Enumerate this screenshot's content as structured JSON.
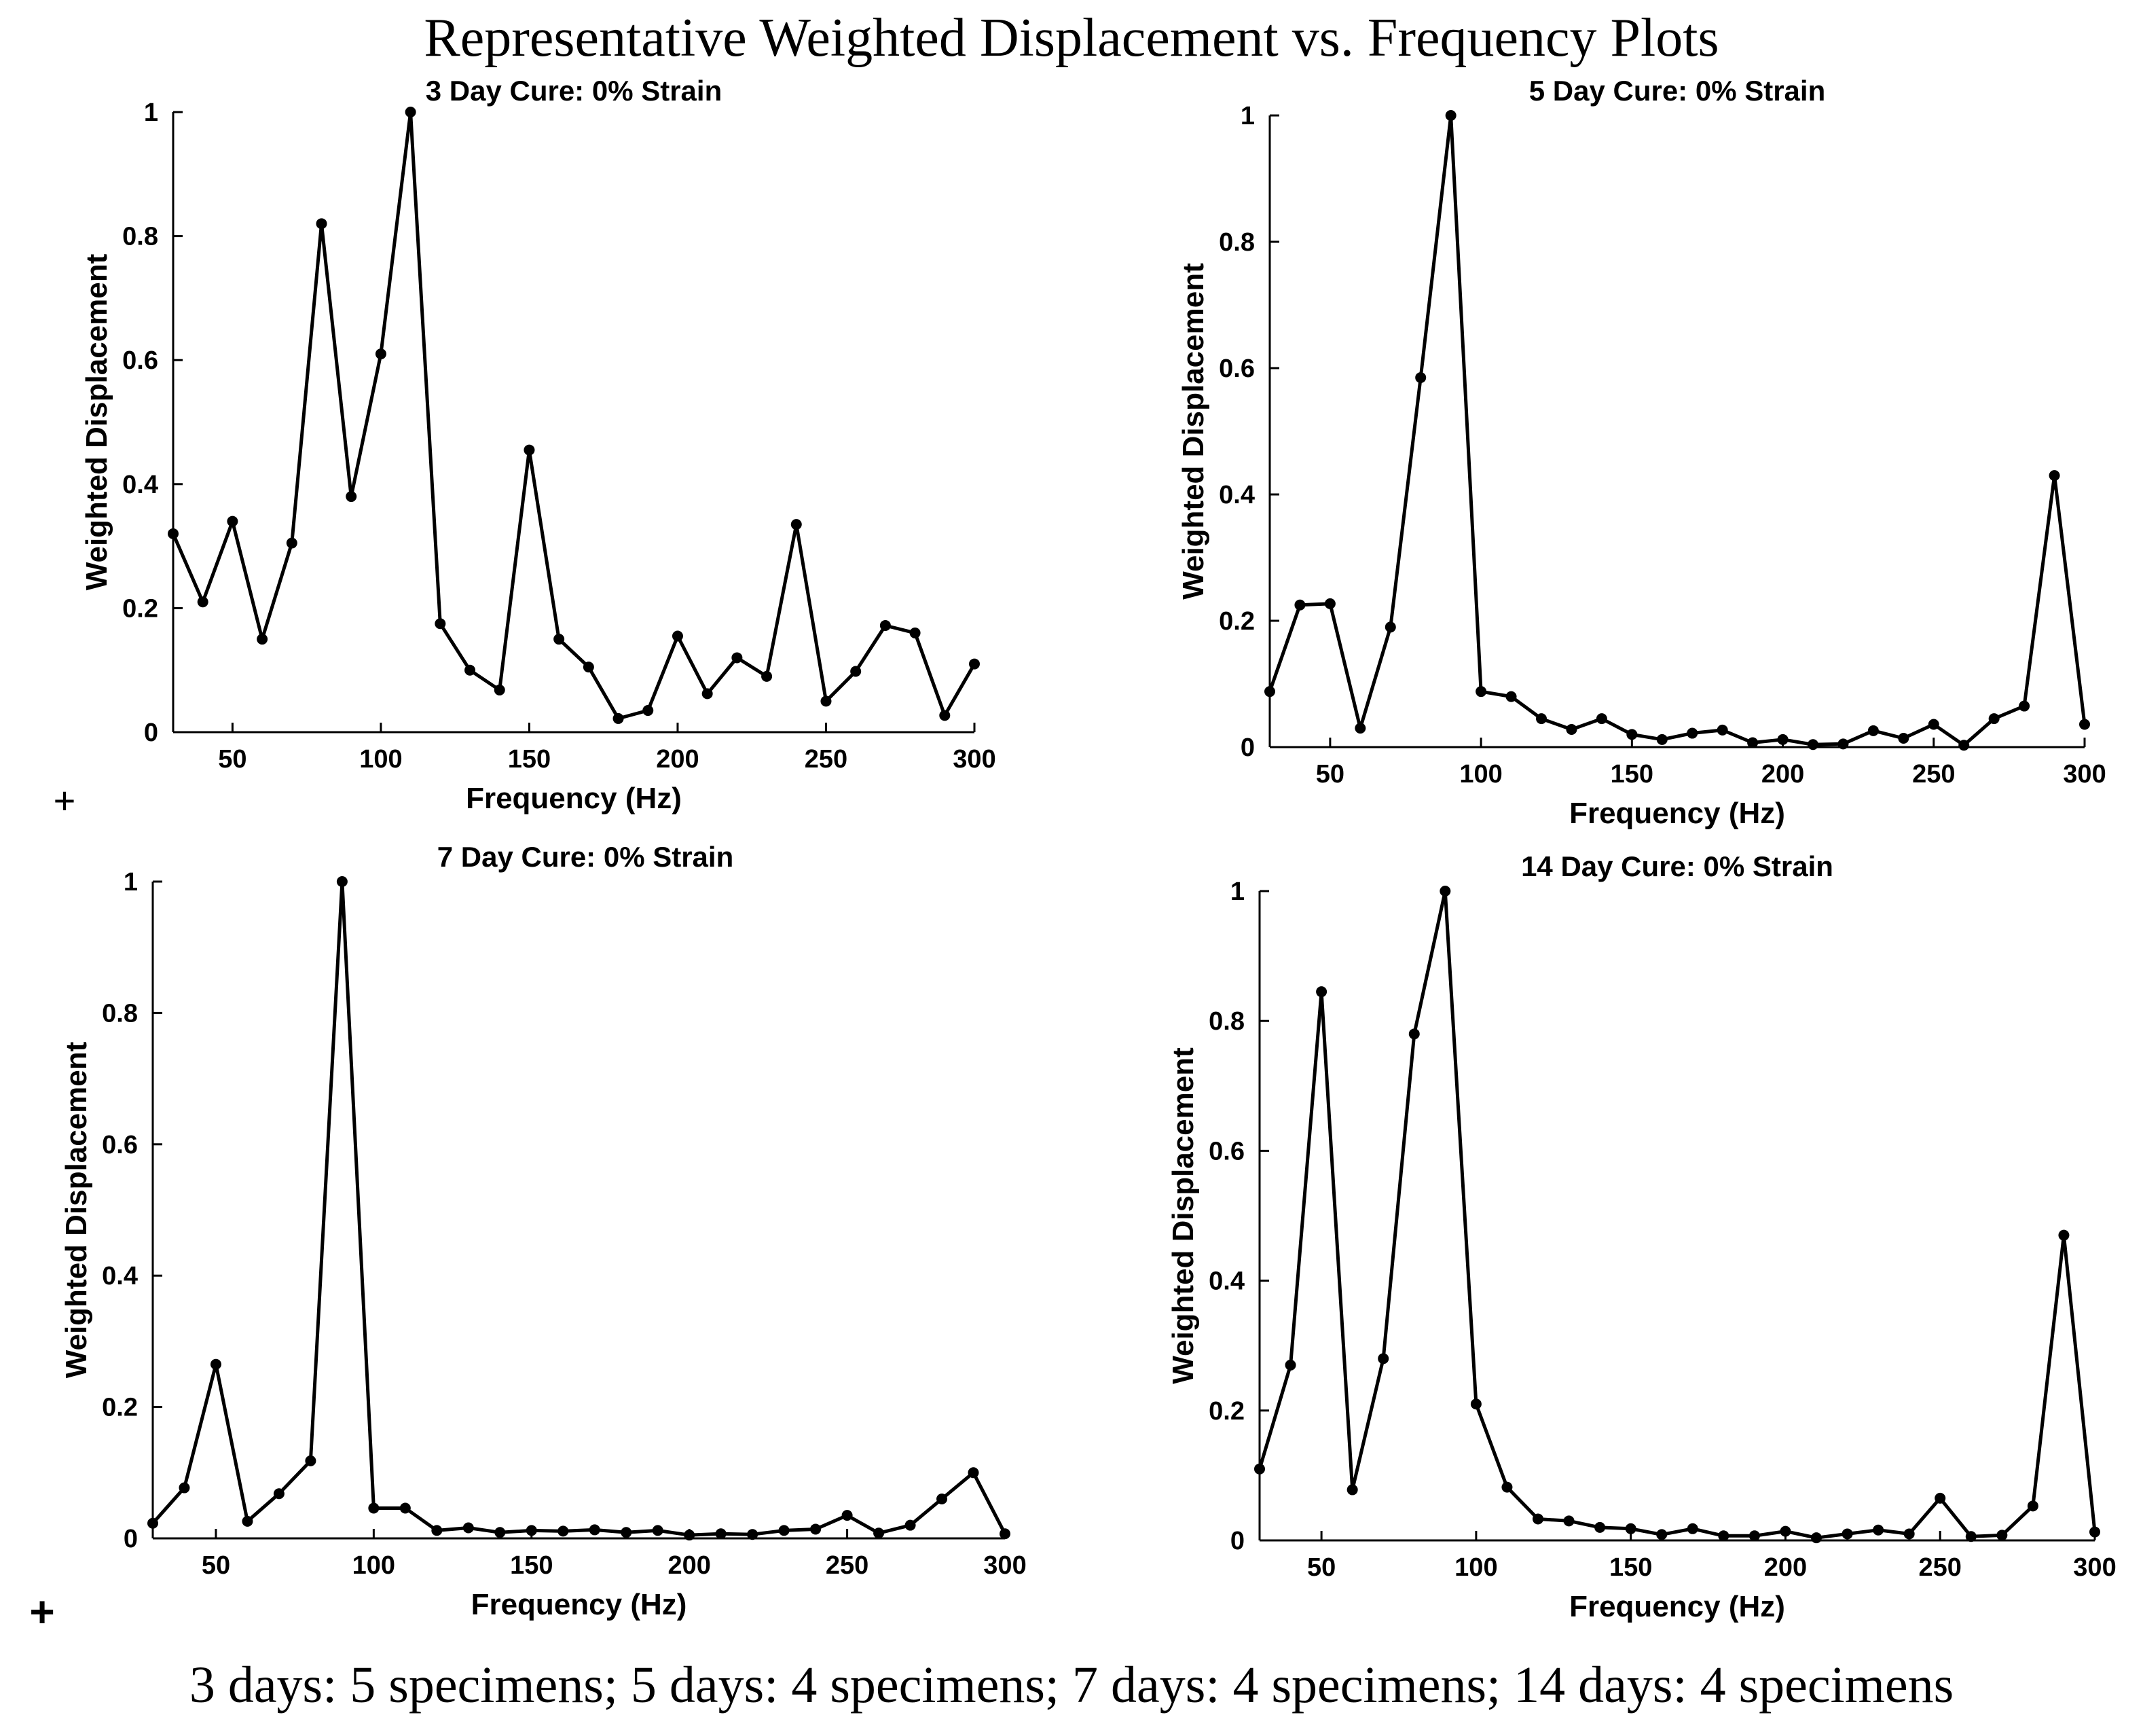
{
  "figure": {
    "title": "Representative Weighted Displacement vs. Frequency Plots",
    "caption": "3 days: 5 specimens; 5 days: 4 specimens; 7 days: 4 specimens; 14 days: 4 specimens",
    "plus_marks": [
      "+",
      "+"
    ]
  },
  "chart_data": [
    {
      "type": "line",
      "title": "3 Day Cure: 0% Strain",
      "xlabel": "Frequency (Hz)",
      "ylabel": "Weighted Displacement",
      "xlim": [
        30,
        300
      ],
      "ylim": [
        0,
        1
      ],
      "xticks": [
        50,
        100,
        150,
        200,
        250,
        300
      ],
      "yticks": [
        0,
        0.2,
        0.4,
        0.6,
        0.8,
        1
      ],
      "ytick_labels": [
        "0",
        "0.2",
        "0.4",
        "0.6",
        "0.8",
        "1"
      ],
      "x": [
        30,
        40,
        50,
        60,
        70,
        80,
        90,
        100,
        110,
        120,
        130,
        140,
        150,
        160,
        170,
        180,
        190,
        200,
        210,
        220,
        230,
        240,
        250,
        260,
        270,
        280,
        290,
        300
      ],
      "values": [
        0.32,
        0.21,
        0.34,
        0.15,
        0.305,
        0.82,
        0.38,
        0.61,
        1.0,
        0.175,
        0.1,
        0.068,
        0.455,
        0.15,
        0.105,
        0.022,
        0.035,
        0.155,
        0.062,
        0.12,
        0.09,
        0.335,
        0.05,
        0.098,
        0.172,
        0.16,
        0.027,
        0.11
      ]
    },
    {
      "type": "line",
      "title": "5 Day Cure: 0% Strain",
      "xlabel": "Frequency (Hz)",
      "ylabel": "Weighted Displacement",
      "xlim": [
        30,
        300
      ],
      "ylim": [
        0,
        1
      ],
      "xticks": [
        50,
        100,
        150,
        200,
        250,
        300
      ],
      "yticks": [
        0,
        0.2,
        0.4,
        0.6,
        0.8,
        1
      ],
      "ytick_labels": [
        "0",
        "0.2",
        "0.4",
        "0.6",
        "0.8",
        "1"
      ],
      "x": [
        30,
        40,
        50,
        60,
        70,
        80,
        90,
        100,
        110,
        120,
        130,
        140,
        150,
        160,
        170,
        180,
        190,
        200,
        210,
        220,
        230,
        240,
        250,
        260,
        270,
        280,
        290,
        300
      ],
      "values": [
        0.088,
        0.225,
        0.227,
        0.03,
        0.19,
        0.585,
        1.0,
        0.088,
        0.08,
        0.045,
        0.028,
        0.045,
        0.02,
        0.012,
        0.022,
        0.027,
        0.007,
        0.012,
        0.004,
        0.005,
        0.026,
        0.014,
        0.036,
        0.003,
        0.045,
        0.065,
        0.43,
        0.036
      ]
    },
    {
      "type": "line",
      "title": "7 Day Cure: 0% Strain",
      "xlabel": "Frequency (Hz)",
      "ylabel": "Weighted Displacement",
      "xlim": [
        30,
        300
      ],
      "ylim": [
        0,
        1
      ],
      "xticks": [
        50,
        100,
        150,
        200,
        250,
        300
      ],
      "yticks": [
        0,
        0.2,
        0.4,
        0.6,
        0.8,
        1
      ],
      "ytick_labels": [
        "0",
        "0.2",
        "0.4",
        "0.6",
        "0.8",
        "1"
      ],
      "x": [
        30,
        40,
        50,
        60,
        70,
        80,
        90,
        100,
        110,
        120,
        130,
        140,
        150,
        160,
        170,
        180,
        190,
        200,
        210,
        220,
        230,
        240,
        250,
        260,
        270,
        280,
        290,
        300
      ],
      "values": [
        0.023,
        0.077,
        0.265,
        0.026,
        0.068,
        0.118,
        1.0,
        0.046,
        0.046,
        0.012,
        0.016,
        0.009,
        0.012,
        0.011,
        0.013,
        0.009,
        0.012,
        0.005,
        0.007,
        0.006,
        0.012,
        0.014,
        0.035,
        0.008,
        0.02,
        0.06,
        0.1,
        0.007
      ]
    },
    {
      "type": "line",
      "title": "14 Day Cure: 0% Strain",
      "xlabel": "Frequency (Hz)",
      "ylabel": "Weighted Displacement",
      "xlim": [
        30,
        300
      ],
      "ylim": [
        0,
        1
      ],
      "xticks": [
        50,
        100,
        150,
        200,
        250,
        300
      ],
      "yticks": [
        0,
        0.2,
        0.4,
        0.6,
        0.8,
        1
      ],
      "ytick_labels": [
        "0",
        "0.2",
        "0.4",
        "0.6",
        "0.8",
        "1"
      ],
      "x": [
        30,
        40,
        50,
        60,
        70,
        80,
        90,
        100,
        110,
        120,
        130,
        140,
        150,
        160,
        170,
        180,
        190,
        200,
        210,
        220,
        230,
        240,
        250,
        260,
        270,
        280,
        290,
        300
      ],
      "values": [
        0.11,
        0.27,
        0.845,
        0.078,
        0.28,
        0.78,
        1.0,
        0.21,
        0.082,
        0.033,
        0.03,
        0.02,
        0.018,
        0.009,
        0.018,
        0.007,
        0.007,
        0.014,
        0.004,
        0.01,
        0.016,
        0.01,
        0.065,
        0.006,
        0.008,
        0.053,
        0.47,
        0.013
      ]
    }
  ]
}
